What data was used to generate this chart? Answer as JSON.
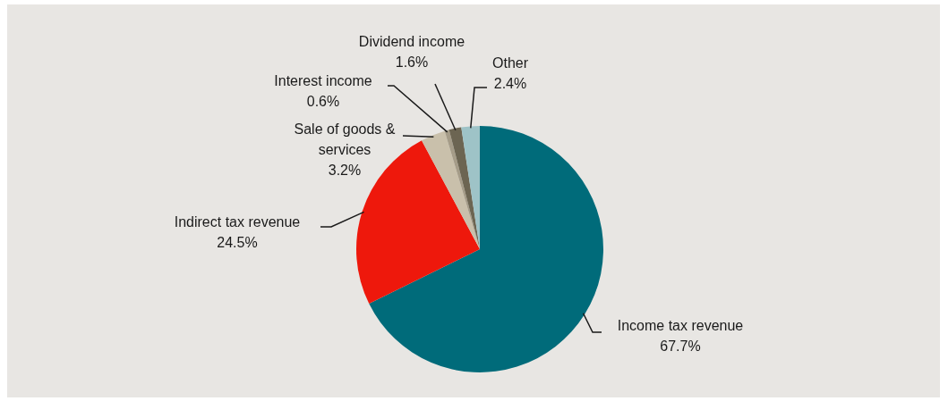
{
  "chart_data": {
    "type": "pie",
    "categories": [
      "Income tax revenue",
      "Indirect tax revenue",
      "Sale of goods & services",
      "Interest income",
      "Dividend income",
      "Other"
    ],
    "values": [
      67.7,
      24.5,
      3.2,
      0.6,
      1.6,
      2.4
    ],
    "colors": [
      "#006b7a",
      "#ee180c",
      "#c9c0ab",
      "#a59c88",
      "#6c6552",
      "#9ec3c7"
    ],
    "value_labels": [
      "67.7%",
      "24.5%",
      "3.2%",
      "0.6%",
      "1.6%",
      "2.4%"
    ],
    "legend": false
  }
}
